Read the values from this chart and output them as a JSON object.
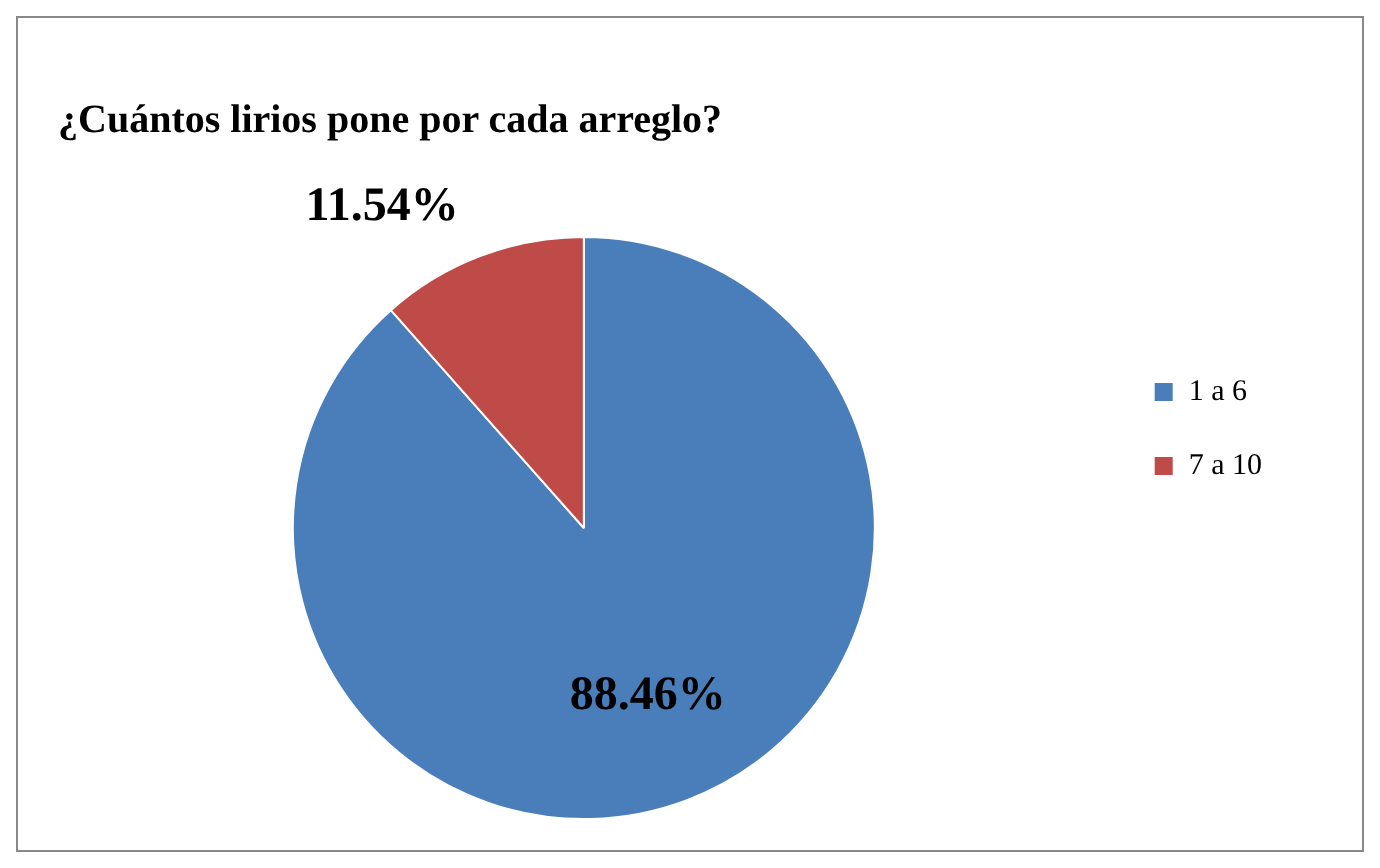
{
  "chart_data": {
    "type": "pie",
    "title": "¿Cuántos lirios pone por cada arreglo?",
    "categories": [
      "1 a 6",
      "7 a 10"
    ],
    "values": [
      88.46,
      11.54
    ],
    "colors": [
      "#4a7ebb",
      "#be4b48"
    ],
    "value_labels": [
      "88.46%",
      "11.54%"
    ],
    "legend": "right"
  }
}
